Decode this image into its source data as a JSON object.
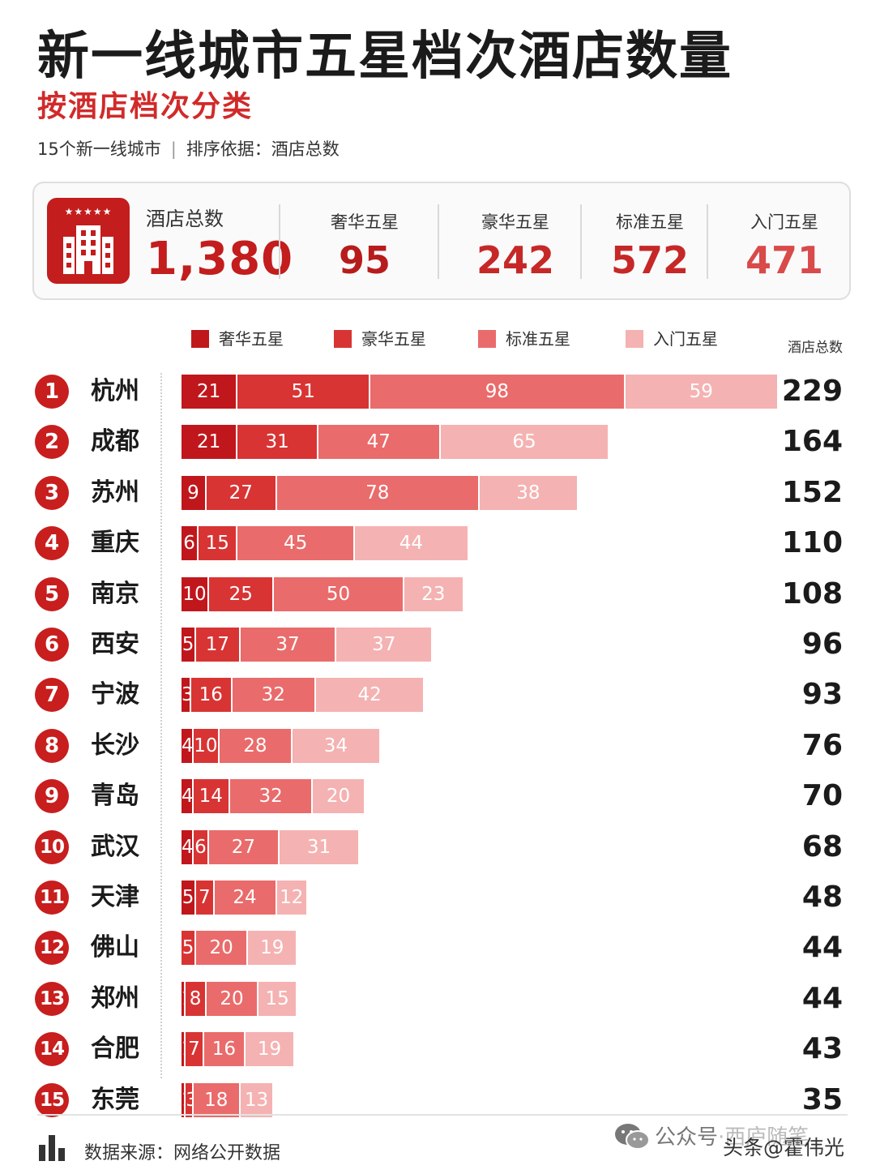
{
  "header": {
    "title": "新一线城市五星档次酒店数量",
    "subtitle": "按酒店档次分类",
    "meta_count": "15个新一线城市",
    "meta_sep": "|",
    "meta_sort": "排序依据：酒店总数"
  },
  "summary": {
    "icon": "hotel-building-icon",
    "stars": "★★★★★",
    "total_label": "酒店总数",
    "total_value": "1,380",
    "items": [
      {
        "label": "奢华五星",
        "value": "95",
        "color": "#b71c1c"
      },
      {
        "label": "豪华五星",
        "value": "242",
        "color": "#c62828"
      },
      {
        "label": "标准五星",
        "value": "572",
        "color": "#c62828"
      },
      {
        "label": "入门五星",
        "value": "471",
        "color": "#d94a4a"
      }
    ]
  },
  "chart_data": {
    "type": "bar",
    "orientation": "horizontal",
    "stacked": true,
    "legend_position": "top",
    "total_column_label": "酒店总数",
    "categories": [
      "杭州",
      "成都",
      "苏州",
      "重庆",
      "南京",
      "西安",
      "宁波",
      "长沙",
      "青岛",
      "武汉",
      "天津",
      "佛山",
      "郑州",
      "合肥",
      "东莞"
    ],
    "ranks": [
      "1",
      "2",
      "3",
      "4",
      "5",
      "6",
      "7",
      "8",
      "9",
      "10",
      "11",
      "12",
      "13",
      "14",
      "15"
    ],
    "series": [
      {
        "name": "奢华五星",
        "color": "#c0171c",
        "values": [
          21,
          21,
          9,
          6,
          10,
          5,
          3,
          4,
          4,
          4,
          5,
          0,
          1,
          1,
          1
        ]
      },
      {
        "name": "豪华五星",
        "color": "#d83434",
        "values": [
          51,
          31,
          27,
          15,
          25,
          17,
          16,
          10,
          14,
          6,
          7,
          5,
          8,
          7,
          3
        ]
      },
      {
        "name": "标准五星",
        "color": "#ea6b6b",
        "values": [
          98,
          47,
          78,
          45,
          50,
          37,
          32,
          28,
          32,
          27,
          24,
          20,
          20,
          16,
          18
        ]
      },
      {
        "name": "入门五星",
        "color": "#f5b2b2",
        "values": [
          59,
          65,
          38,
          44,
          23,
          37,
          42,
          34,
          20,
          31,
          12,
          19,
          15,
          19,
          13
        ]
      }
    ],
    "totals": [
      229,
      164,
      152,
      110,
      108,
      96,
      93,
      76,
      70,
      68,
      48,
      44,
      44,
      43,
      35
    ],
    "xlim": [
      0,
      229
    ]
  },
  "footer": {
    "icon": "bar-chart-icon",
    "source": "数据来源：网络公开数据",
    "watermark_icon": "wechat-icon",
    "watermark_account": "公众号",
    "watermark_faded": "·西庐随笔",
    "watermark_author": "头条@霍伟光"
  }
}
